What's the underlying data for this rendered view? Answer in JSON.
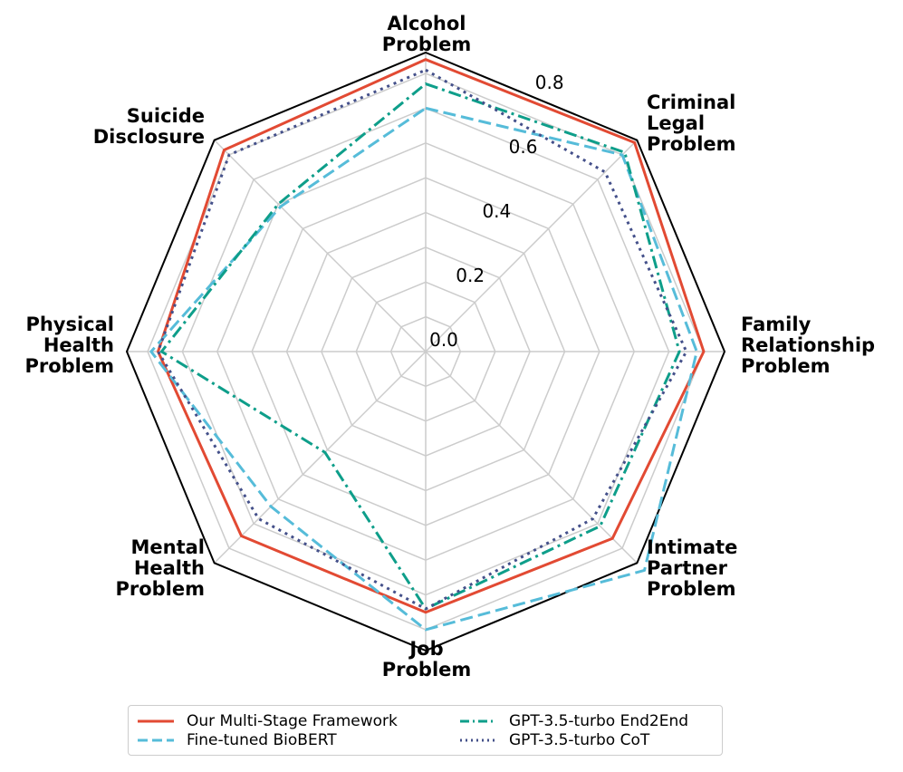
{
  "chart_data": {
    "type": "radar",
    "title": "",
    "categories": [
      {
        "lines": [
          "Alcohol",
          "Problem"
        ]
      },
      {
        "lines": [
          "Criminal",
          "Legal",
          "Problem"
        ]
      },
      {
        "lines": [
          "Family",
          "Relationship",
          "Problem"
        ]
      },
      {
        "lines": [
          "Intimate",
          "Partner",
          "Problem"
        ]
      },
      {
        "lines": [
          "Job",
          "Problem"
        ]
      },
      {
        "lines": [
          "Mental",
          "Health",
          "Problem"
        ]
      },
      {
        "lines": [
          "Physical",
          "Health",
          "Problem"
        ]
      },
      {
        "lines": [
          "Suicide",
          "Disclosure"
        ]
      }
    ],
    "rlim": [
      0,
      0.86
    ],
    "rticks": [
      {
        "value": 0.0,
        "label": "0.0"
      },
      {
        "value": 0.2,
        "label": "0.2"
      },
      {
        "value": 0.4,
        "label": "0.4"
      },
      {
        "value": 0.6,
        "label": "0.6"
      },
      {
        "value": 0.8,
        "label": "0.8"
      }
    ],
    "grid": true,
    "legend_position": "bottom",
    "series": [
      {
        "name": "Our Multi-Stage Framework",
        "color": "#e24a33",
        "dash": "solid",
        "values": [
          0.84,
          0.85,
          0.8,
          0.76,
          0.75,
          0.75,
          0.77,
          0.82
        ]
      },
      {
        "name": "Fine-tuned BioBERT",
        "color": "#56bcd9",
        "dash": "dashed",
        "values": [
          0.7,
          0.8,
          0.78,
          0.89,
          0.8,
          0.63,
          0.79,
          0.59
        ]
      },
      {
        "name": "GPT-3.5-turbo End2End",
        "color": "#0e9e8a",
        "dash": "dashdot",
        "values": [
          0.77,
          0.81,
          0.73,
          0.71,
          0.74,
          0.41,
          0.76,
          0.6
        ]
      },
      {
        "name": "GPT-3.5-turbo CoT",
        "color": "#44508a",
        "dash": "dotted",
        "values": [
          0.81,
          0.73,
          0.75,
          0.68,
          0.74,
          0.68,
          0.77,
          0.8
        ]
      }
    ]
  }
}
